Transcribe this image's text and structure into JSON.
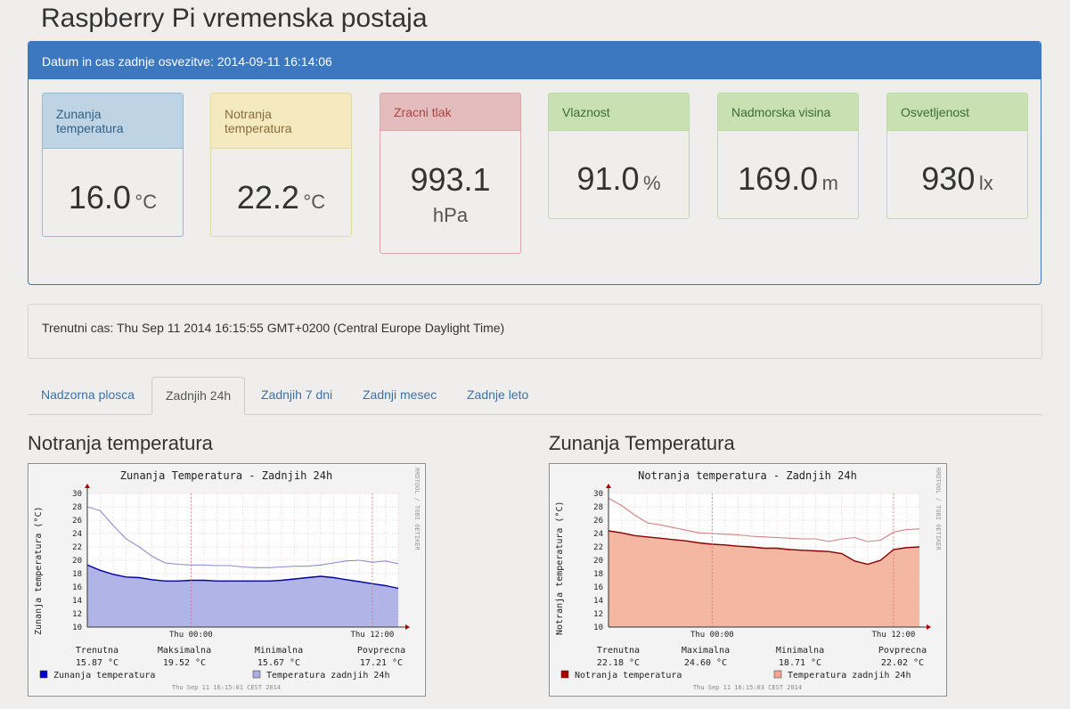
{
  "page": {
    "title": "Raspberry Pi vremenska postaja"
  },
  "panel": {
    "heading": "Datum in cas zadnje osvezitve: 2014-09-11 16:14:06",
    "tiles": [
      {
        "label": "Zunanja temperatura",
        "value": "16.0",
        "unit": "°C",
        "color": "blue"
      },
      {
        "label": "Notranja temperatura",
        "value": "22.2",
        "unit": "°C",
        "color": "yellow"
      },
      {
        "label": "Zracni tlak",
        "value": "993.1",
        "unit": "hPa",
        "color": "red"
      },
      {
        "label": "Vlaznost",
        "value": "91.0",
        "unit": "%",
        "color": "green"
      },
      {
        "label": "Nadmorska visina",
        "value": "169.0",
        "unit": "m",
        "color": "green"
      },
      {
        "label": "Osvetljenost",
        "value": "930",
        "unit": "lx",
        "color": "green"
      }
    ]
  },
  "clock": {
    "text": "Trenutni cas: Thu Sep 11 2014 16:15:55 GMT+0200 (Central Europe Daylight Time)"
  },
  "tabs": [
    {
      "label": "Nadzorna plosca",
      "active": false
    },
    {
      "label": "Zadnjih 24h",
      "active": true
    },
    {
      "label": "Zadnjih 7 dni",
      "active": false
    },
    {
      "label": "Zadnji mesec",
      "active": false
    },
    {
      "label": "Zadnje leto",
      "active": false
    }
  ],
  "sections": {
    "left_title": "Notranja temperatura",
    "right_title": "Zunanja Temperatura"
  },
  "chart_data": [
    {
      "type": "area",
      "title": "Zunanja Temperatura - Zadnjih 24h",
      "ylabel": "Zunanja temperatura (°C)",
      "side_label": "RRDTOOL / TOBI OETIKER",
      "ylim": [
        10,
        30
      ],
      "yticks": [
        10,
        12,
        14,
        16,
        18,
        20,
        22,
        24,
        26,
        28,
        30
      ],
      "xticks": [
        "Thu 00:00",
        "Thu 12:00"
      ],
      "x": [
        0,
        1,
        2,
        3,
        4,
        5,
        6,
        7,
        8,
        9,
        10,
        11,
        12,
        13,
        14,
        15,
        16,
        17,
        18,
        19,
        20,
        21,
        22,
        23,
        24
      ],
      "series": [
        {
          "name": "Zunanja temperatura",
          "kind": "area",
          "color": "#0000aa",
          "fill": "#b0b4e6",
          "values": [
            19.3,
            18.5,
            17.9,
            17.5,
            17.4,
            17.1,
            16.9,
            16.9,
            17.0,
            17.0,
            16.9,
            16.9,
            16.9,
            16.9,
            16.9,
            17.0,
            17.2,
            17.4,
            17.6,
            17.4,
            17.1,
            16.8,
            16.5,
            16.2,
            15.8
          ]
        },
        {
          "name": "Temperatura zadnjih 24h",
          "kind": "line",
          "color": "#8a8fd0",
          "values": [
            28.0,
            27.4,
            25.2,
            23.2,
            22.0,
            20.6,
            19.6,
            19.4,
            19.3,
            19.3,
            19.2,
            19.2,
            19.0,
            18.9,
            18.9,
            19.0,
            19.1,
            19.1,
            19.3,
            19.6,
            19.9,
            20.0,
            19.7,
            19.9,
            19.5
          ]
        }
      ],
      "stats": {
        "labels": [
          "Trenutna",
          "Maksimalna",
          "Minimalna",
          "Povprecna"
        ],
        "values": [
          "15.87 °C",
          "19.52 °C",
          "15.67 °C",
          "17.21 °C"
        ]
      },
      "legend": [
        {
          "label": "Zunanja temperatura",
          "color": "#0000cc"
        },
        {
          "label": "Temperatura zadnjih 24h",
          "color": "#a9acdf"
        }
      ],
      "footer": "Thu Sep 11 16:15:01 CEST 2014"
    },
    {
      "type": "area",
      "title": "Notranja temperatura - Zadnjih 24h",
      "ylabel": "Notranja temperatura (°C)",
      "side_label": "RRDTOOL / TOBI OETIKER",
      "ylim": [
        10,
        30
      ],
      "yticks": [
        10,
        12,
        14,
        16,
        18,
        20,
        22,
        24,
        26,
        28,
        30
      ],
      "xticks": [
        "Thu 00:00",
        "Thu 12:00"
      ],
      "x": [
        0,
        1,
        2,
        3,
        4,
        5,
        6,
        7,
        8,
        9,
        10,
        11,
        12,
        13,
        14,
        15,
        16,
        17,
        18,
        19,
        20,
        21,
        22,
        23,
        24
      ],
      "series": [
        {
          "name": "Notranja temperatura",
          "kind": "area",
          "color": "#880000",
          "fill": "#f4b7a2",
          "values": [
            24.4,
            24.1,
            23.7,
            23.5,
            23.3,
            23.1,
            22.9,
            22.6,
            22.4,
            22.3,
            22.1,
            22.0,
            21.8,
            21.8,
            21.6,
            21.5,
            21.4,
            21.3,
            21.0,
            19.9,
            19.4,
            20.0,
            21.6,
            21.9,
            22.0
          ]
        },
        {
          "name": "Temperatura zadnjih 24h",
          "kind": "line",
          "color": "#d08080",
          "values": [
            29.3,
            28.2,
            26.8,
            25.6,
            25.3,
            24.9,
            24.5,
            24.1,
            24.0,
            23.9,
            23.8,
            23.6,
            23.5,
            23.4,
            23.3,
            23.2,
            23.2,
            22.8,
            23.2,
            23.4,
            22.8,
            23.0,
            24.2,
            24.6,
            24.7
          ]
        }
      ],
      "stats": {
        "labels": [
          "Trenutna",
          "Maximalna",
          "Minimalna",
          "Povprecna"
        ],
        "values": [
          "22.18 °C",
          "24.60 °C",
          "18.71 °C",
          "22.02 °C"
        ]
      },
      "legend": [
        {
          "label": "Notranja temperatura",
          "color": "#aa0000"
        },
        {
          "label": "Temperatura zadnjih 24h",
          "color": "#f4a592"
        }
      ],
      "footer": "Thu Sep 11 16:15:03 CEST 2014"
    }
  ]
}
